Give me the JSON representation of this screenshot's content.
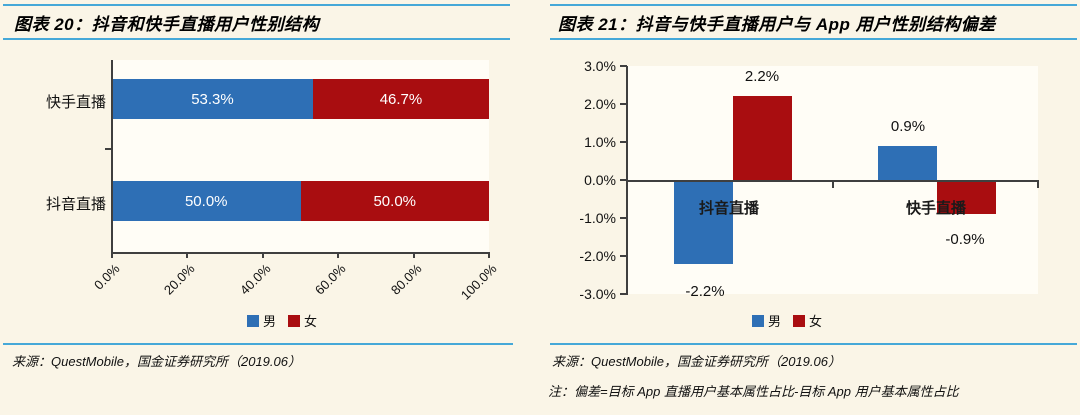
{
  "colors": {
    "male": "#2E6FB5",
    "female": "#A90D10",
    "rule_blue": "#45A8D8",
    "axis": "#3F3F3F"
  },
  "chart_data": [
    {
      "id": "figure-20",
      "type": "bar",
      "orientation": "horizontal-stacked",
      "title": "图表 20：抖音和快手直播用户性别结构",
      "categories": [
        "快手直播",
        "抖音直播"
      ],
      "series": [
        {
          "name": "男",
          "color": "#2E6FB5",
          "values": [
            53.3,
            50.0
          ],
          "labels": [
            "53.3%",
            "50.0%"
          ]
        },
        {
          "name": "女",
          "color": "#A90D10",
          "values": [
            46.7,
            50.0
          ],
          "labels": [
            "46.7%",
            "50.0%"
          ]
        }
      ],
      "x_ticks": [
        "0.0%",
        "20.0%",
        "40.0%",
        "60.0%",
        "80.0%",
        "100.0%"
      ],
      "xlim": [
        0,
        100
      ],
      "legend_position": "bottom",
      "grid": false,
      "source": "来源：QuestMobile，国金证券研究所（2019.06）"
    },
    {
      "id": "figure-21",
      "type": "bar",
      "orientation": "vertical-grouped",
      "title": "图表 21：抖音与快手直播用户与 App 用户性别结构偏差",
      "categories": [
        "抖音直播",
        "快手直播"
      ],
      "series": [
        {
          "name": "男",
          "color": "#2E6FB5",
          "values": [
            -2.2,
            0.9
          ],
          "labels": [
            "-2.2%",
            "0.9%"
          ]
        },
        {
          "name": "女",
          "color": "#A90D10",
          "values": [
            2.2,
            -0.9
          ],
          "labels": [
            "2.2%",
            "-0.9%"
          ]
        }
      ],
      "y_ticks": [
        "3.0%",
        "2.0%",
        "1.0%",
        "0.0%",
        "-1.0%",
        "-2.0%",
        "-3.0%"
      ],
      "ylim": [
        -3,
        3
      ],
      "legend_position": "bottom",
      "grid": false,
      "source": "来源：QuestMobile，国金证券研究所（2019.06）",
      "note": "注：偏差=目标 App 直播用户基本属性占比-目标 App 用户基本属性占比"
    }
  ]
}
